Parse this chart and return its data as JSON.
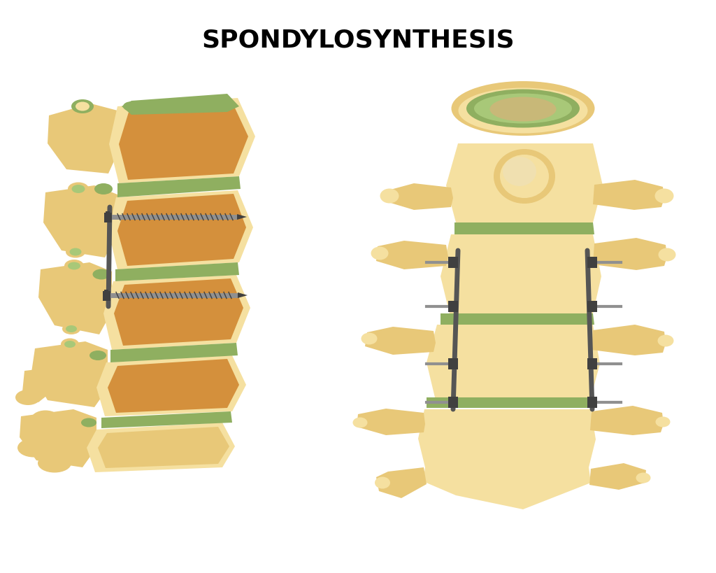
{
  "title": "SPONDYLOSYNTHESIS",
  "title_fontsize": 26,
  "title_font": "DejaVu Sans",
  "title_weight": "bold",
  "bg_color": "#ffffff",
  "bone_color_main": "#E8C878",
  "bone_color_light": "#F5E0A0",
  "bone_color_dark": "#C8A850",
  "bone_color_shadow": "#D4B060",
  "disc_color": "#8FAF60",
  "disc_color_light": "#A8C878",
  "disc_color_dark": "#607840",
  "screw_color": "#909090",
  "screw_color_dark": "#404040",
  "plate_color": "#555555",
  "cancellous_color": "#D4903C",
  "watermark_color": "#e8e8e8"
}
